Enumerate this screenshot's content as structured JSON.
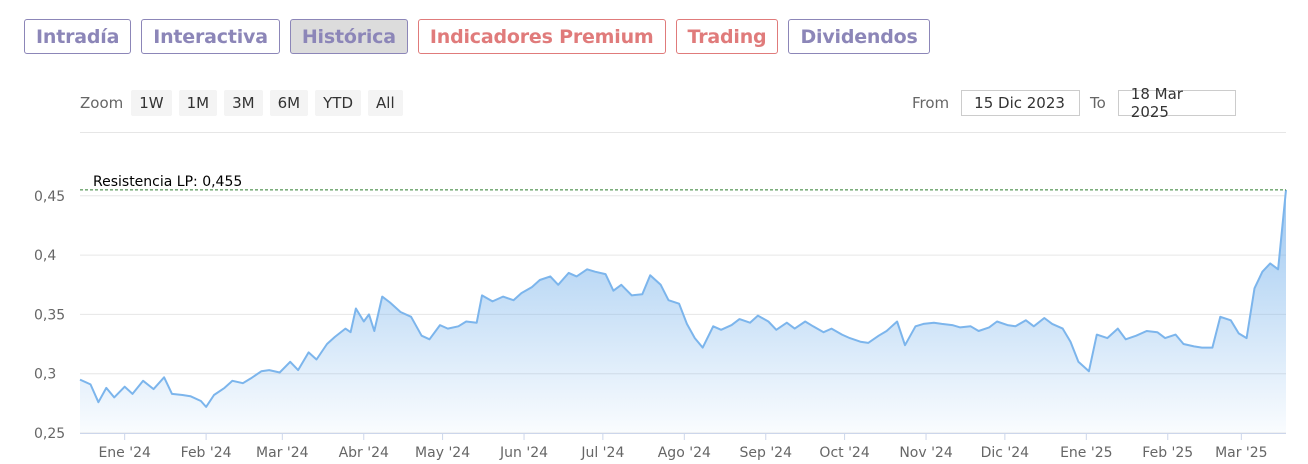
{
  "tabs": [
    {
      "label": "Intradía",
      "style": "purple"
    },
    {
      "label": "Interactiva",
      "style": "purple"
    },
    {
      "label": "Histórica",
      "style": "active"
    },
    {
      "label": "Indicadores Premium",
      "style": "red"
    },
    {
      "label": "Trading",
      "style": "red"
    },
    {
      "label": "Dividendos",
      "style": "purple"
    }
  ],
  "zoom": {
    "label": "Zoom",
    "buttons": [
      "1W",
      "1M",
      "3M",
      "6M",
      "YTD",
      "All"
    ]
  },
  "range": {
    "from_label": "From",
    "from_value": "15 Dic 2023",
    "to_label": "To",
    "to_value": "18 Mar 2025"
  },
  "colors": {
    "line": "#7cb5ec",
    "area_top": "#7cb5ec",
    "resistance": "#2f7d2f",
    "tab_purple": "#8c86b8",
    "tab_red": "#e07b7b"
  },
  "chart_data": {
    "type": "area",
    "ylim": [
      0.25,
      0.455
    ],
    "yticks": [
      {
        "value": 0.25,
        "label": "0,25"
      },
      {
        "value": 0.3,
        "label": "0,3"
      },
      {
        "value": 0.35,
        "label": "0,35"
      },
      {
        "value": 0.4,
        "label": "0,4"
      },
      {
        "value": 0.45,
        "label": "0,45"
      }
    ],
    "xticks": [
      {
        "date": "2024-01-01",
        "label": "Ene '24"
      },
      {
        "date": "2024-02-01",
        "label": "Feb '24"
      },
      {
        "date": "2024-03-01",
        "label": "Mar '24"
      },
      {
        "date": "2024-04-01",
        "label": "Abr '24"
      },
      {
        "date": "2024-05-01",
        "label": "May '24"
      },
      {
        "date": "2024-06-01",
        "label": "Jun '24"
      },
      {
        "date": "2024-07-01",
        "label": "Jul '24"
      },
      {
        "date": "2024-08-01",
        "label": "Ago '24"
      },
      {
        "date": "2024-09-01",
        "label": "Sep '24"
      },
      {
        "date": "2024-10-01",
        "label": "Oct '24"
      },
      {
        "date": "2024-11-01",
        "label": "Nov '24"
      },
      {
        "date": "2024-12-01",
        "label": "Dic '24"
      },
      {
        "date": "2025-01-01",
        "label": "Ene '25"
      },
      {
        "date": "2025-02-01",
        "label": "Feb '25"
      },
      {
        "date": "2025-03-01",
        "label": "Mar '25"
      }
    ],
    "annotation": {
      "label": "Resistencia LP: 0,455",
      "value": 0.455
    },
    "points": [
      [
        "2023-12-15",
        0.295
      ],
      [
        "2023-12-19",
        0.291
      ],
      [
        "2023-12-22",
        0.276
      ],
      [
        "2023-12-25",
        0.288
      ],
      [
        "2023-12-28",
        0.28
      ],
      [
        "2024-01-01",
        0.289
      ],
      [
        "2024-01-04",
        0.283
      ],
      [
        "2024-01-08",
        0.294
      ],
      [
        "2024-01-12",
        0.287
      ],
      [
        "2024-01-16",
        0.297
      ],
      [
        "2024-01-19",
        0.283
      ],
      [
        "2024-01-23",
        0.282
      ],
      [
        "2024-01-26",
        0.281
      ],
      [
        "2024-01-30",
        0.277
      ],
      [
        "2024-02-01",
        0.272
      ],
      [
        "2024-02-04",
        0.282
      ],
      [
        "2024-02-08",
        0.288
      ],
      [
        "2024-02-11",
        0.294
      ],
      [
        "2024-02-15",
        0.292
      ],
      [
        "2024-02-18",
        0.296
      ],
      [
        "2024-02-22",
        0.302
      ],
      [
        "2024-02-25",
        0.303
      ],
      [
        "2024-02-29",
        0.301
      ],
      [
        "2024-03-04",
        0.31
      ],
      [
        "2024-03-07",
        0.303
      ],
      [
        "2024-03-11",
        0.318
      ],
      [
        "2024-03-14",
        0.312
      ],
      [
        "2024-03-18",
        0.325
      ],
      [
        "2024-03-21",
        0.331
      ],
      [
        "2024-03-25",
        0.338
      ],
      [
        "2024-03-27",
        0.335
      ],
      [
        "2024-03-29",
        0.355
      ],
      [
        "2024-04-01",
        0.344
      ],
      [
        "2024-04-03",
        0.35
      ],
      [
        "2024-04-05",
        0.336
      ],
      [
        "2024-04-08",
        0.365
      ],
      [
        "2024-04-11",
        0.36
      ],
      [
        "2024-04-15",
        0.352
      ],
      [
        "2024-04-19",
        0.348
      ],
      [
        "2024-04-23",
        0.332
      ],
      [
        "2024-04-26",
        0.329
      ],
      [
        "2024-04-30",
        0.341
      ],
      [
        "2024-05-03",
        0.338
      ],
      [
        "2024-05-07",
        0.34
      ],
      [
        "2024-05-10",
        0.344
      ],
      [
        "2024-05-14",
        0.343
      ],
      [
        "2024-05-16",
        0.366
      ],
      [
        "2024-05-20",
        0.361
      ],
      [
        "2024-05-24",
        0.365
      ],
      [
        "2024-05-28",
        0.362
      ],
      [
        "2024-05-31",
        0.368
      ],
      [
        "2024-06-04",
        0.373
      ],
      [
        "2024-06-07",
        0.379
      ],
      [
        "2024-06-11",
        0.382
      ],
      [
        "2024-06-14",
        0.375
      ],
      [
        "2024-06-18",
        0.385
      ],
      [
        "2024-06-21",
        0.382
      ],
      [
        "2024-06-25",
        0.388
      ],
      [
        "2024-06-28",
        0.386
      ],
      [
        "2024-07-02",
        0.384
      ],
      [
        "2024-07-05",
        0.37
      ],
      [
        "2024-07-08",
        0.375
      ],
      [
        "2024-07-12",
        0.366
      ],
      [
        "2024-07-16",
        0.367
      ],
      [
        "2024-07-19",
        0.383
      ],
      [
        "2024-07-23",
        0.375
      ],
      [
        "2024-07-26",
        0.362
      ],
      [
        "2024-07-30",
        0.359
      ],
      [
        "2024-08-02",
        0.342
      ],
      [
        "2024-08-05",
        0.33
      ],
      [
        "2024-08-08",
        0.322
      ],
      [
        "2024-08-12",
        0.34
      ],
      [
        "2024-08-15",
        0.337
      ],
      [
        "2024-08-19",
        0.341
      ],
      [
        "2024-08-22",
        0.346
      ],
      [
        "2024-08-26",
        0.343
      ],
      [
        "2024-08-29",
        0.349
      ],
      [
        "2024-09-02",
        0.344
      ],
      [
        "2024-09-05",
        0.337
      ],
      [
        "2024-09-09",
        0.343
      ],
      [
        "2024-09-12",
        0.338
      ],
      [
        "2024-09-16",
        0.344
      ],
      [
        "2024-09-19",
        0.34
      ],
      [
        "2024-09-23",
        0.335
      ],
      [
        "2024-09-26",
        0.338
      ],
      [
        "2024-09-30",
        0.333
      ],
      [
        "2024-10-03",
        0.33
      ],
      [
        "2024-10-07",
        0.327
      ],
      [
        "2024-10-10",
        0.326
      ],
      [
        "2024-10-14",
        0.332
      ],
      [
        "2024-10-17",
        0.336
      ],
      [
        "2024-10-21",
        0.344
      ],
      [
        "2024-10-24",
        0.324
      ],
      [
        "2024-10-28",
        0.34
      ],
      [
        "2024-10-31",
        0.342
      ],
      [
        "2024-11-04",
        0.343
      ],
      [
        "2024-11-07",
        0.342
      ],
      [
        "2024-11-11",
        0.341
      ],
      [
        "2024-11-14",
        0.339
      ],
      [
        "2024-11-18",
        0.34
      ],
      [
        "2024-11-21",
        0.336
      ],
      [
        "2024-11-25",
        0.339
      ],
      [
        "2024-11-28",
        0.344
      ],
      [
        "2024-12-02",
        0.341
      ],
      [
        "2024-12-05",
        0.34
      ],
      [
        "2024-12-09",
        0.345
      ],
      [
        "2024-12-12",
        0.34
      ],
      [
        "2024-12-16",
        0.347
      ],
      [
        "2024-12-19",
        0.342
      ],
      [
        "2024-12-23",
        0.338
      ],
      [
        "2024-12-26",
        0.327
      ],
      [
        "2024-12-29",
        0.31
      ],
      [
        "2025-01-02",
        0.302
      ],
      [
        "2025-01-05",
        0.333
      ],
      [
        "2025-01-09",
        0.33
      ],
      [
        "2025-01-13",
        0.338
      ],
      [
        "2025-01-16",
        0.329
      ],
      [
        "2025-01-20",
        0.332
      ],
      [
        "2025-01-24",
        0.336
      ],
      [
        "2025-01-28",
        0.335
      ],
      [
        "2025-01-31",
        0.33
      ],
      [
        "2025-02-04",
        0.333
      ],
      [
        "2025-02-07",
        0.325
      ],
      [
        "2025-02-11",
        0.323
      ],
      [
        "2025-02-14",
        0.322
      ],
      [
        "2025-02-18",
        0.322
      ],
      [
        "2025-02-21",
        0.348
      ],
      [
        "2025-02-25",
        0.345
      ],
      [
        "2025-02-28",
        0.334
      ],
      [
        "2025-03-03",
        0.33
      ],
      [
        "2025-03-06",
        0.372
      ],
      [
        "2025-03-09",
        0.386
      ],
      [
        "2025-03-12",
        0.393
      ],
      [
        "2025-03-15",
        0.388
      ],
      [
        "2025-03-18",
        0.455
      ]
    ]
  }
}
